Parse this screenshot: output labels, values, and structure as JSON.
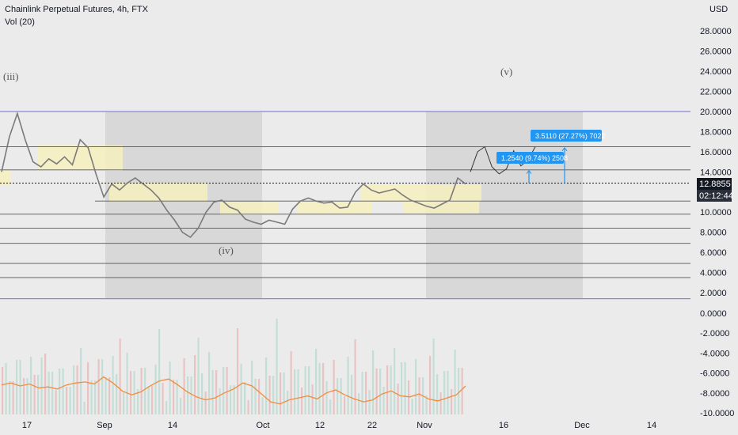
{
  "header": {
    "title": "Chainlink Perpetual Futures, 4h, FTX",
    "volume_label": "Vol (20)",
    "currency": "USD"
  },
  "axis": {
    "y_ticks": [
      "28.0000",
      "26.0000",
      "24.0000",
      "22.0000",
      "20.0000",
      "18.0000",
      "16.0000",
      "14.0000",
      "10.0000",
      "8.0000",
      "6.0000",
      "4.0000",
      "2.0000",
      "0.0000",
      "-2.0000",
      "-4.0000",
      "-6.0000",
      "-8.0000",
      "-10.0000"
    ],
    "x_ticks": [
      "17",
      "Sep",
      "14",
      "Oct",
      "12",
      "22",
      "Nov",
      "16",
      "Dec",
      "14"
    ]
  },
  "last_price": "12.8855",
  "countdown": "02:12:44",
  "wave_labels": {
    "iii": "(iii)",
    "iv": "(iv)",
    "v": "(v)"
  },
  "measure_boxes": [
    {
      "text": "1.2540 (9.74%) 2508"
    },
    {
      "text": "3.5110 (27.27%) 7022"
    }
  ],
  "colors": {
    "background": "#ebebeb",
    "shaded_zone": "#d8d8d8",
    "highlight": "#f7f0c0",
    "channel": "#8a87d8",
    "level": "#555555",
    "measure": "#2196f3",
    "volume_ma": "#f28c3c",
    "candles": "#7a7a7a"
  },
  "chart_data": {
    "type": "line",
    "title": "Chainlink Perpetual Futures, 4h, FTX",
    "y_range": [
      -10,
      30
    ],
    "x_ticks": [
      "17",
      "Sep",
      "14",
      "Oct",
      "12",
      "22",
      "Nov",
      "16",
      "Dec",
      "14"
    ],
    "horizontal_levels": [
      20.0,
      16.5,
      14.2,
      11.1,
      9.8,
      8.4,
      6.9,
      4.9,
      3.5,
      1.4
    ],
    "last_price": 12.8855,
    "series": [
      {
        "values": [
          14.0,
          17.5,
          19.8,
          17.2,
          15.0,
          14.5,
          15.3,
          14.8,
          15.5,
          14.7,
          17.2,
          16.4,
          13.8,
          11.5,
          12.8,
          12.2,
          12.9,
          13.4,
          12.8,
          12.2,
          11.4,
          10.2,
          9.2,
          8.0,
          7.5,
          8.4,
          10.0,
          11.0,
          11.2,
          10.5,
          10.2,
          9.3,
          9.0,
          8.8,
          9.2,
          9.0,
          8.8,
          10.3,
          11.1,
          11.4,
          11.1,
          10.9,
          11.0,
          10.4,
          10.5,
          12.0,
          12.8,
          12.2,
          11.9,
          12.1,
          12.3,
          11.7,
          11.2,
          10.9,
          10.6,
          10.4,
          10.8,
          11.2,
          13.4,
          12.8
        ]
      },
      {
        "values": [
          14.0,
          16.0,
          16.5,
          14.5,
          13.8,
          14.3,
          16.1,
          14.6,
          15.2,
          16.5
        ]
      }
    ],
    "measurements": [
      {
        "value": 1.254,
        "percent": 9.74,
        "ticks": 2508
      },
      {
        "value": 3.511,
        "percent": 27.27,
        "ticks": 7022
      }
    ],
    "volume_ma": [
      -7.2,
      -7.0,
      -7.3,
      -7.1,
      -7.5,
      -7.4,
      -7.6,
      -7.2,
      -7.0,
      -6.9,
      -7.1,
      -6.4,
      -7.0,
      -7.8,
      -8.2,
      -7.9,
      -7.3,
      -6.8,
      -6.6,
      -7.2,
      -7.9,
      -8.4,
      -8.7,
      -8.5,
      -8.0,
      -7.6,
      -7.0,
      -7.3,
      -8.1,
      -8.9,
      -9.1,
      -8.7,
      -8.5,
      -8.3,
      -8.6,
      -8.0,
      -7.7,
      -8.2,
      -8.6,
      -8.9,
      -8.7,
      -8.1,
      -7.8,
      -8.3,
      -8.4,
      -8.1,
      -8.6,
      -8.8,
      -8.5,
      -8.2,
      -7.3
    ]
  }
}
